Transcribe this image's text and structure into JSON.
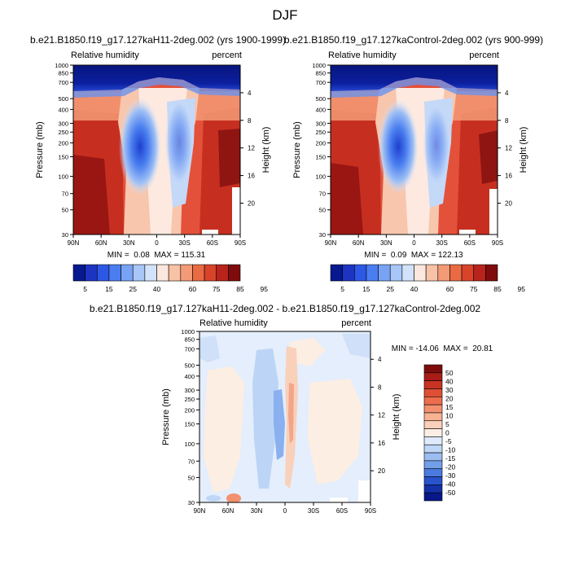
{
  "page": {
    "title": "DJF"
  },
  "chart_data": [
    {
      "type": "contour",
      "title": "b.e21.B1850.f19_g17.127kaH11-2deg.002 (yrs 1900-1999)",
      "left_string": "Relative humidity",
      "right_string": "percent",
      "ylabel": "Pressure (mb)",
      "ylabel_right": "Height (km)",
      "x_ticks": [
        "90N",
        "60N",
        "30N",
        "0",
        "30S",
        "60S",
        "90S"
      ],
      "y_ticks": [
        1000,
        850,
        700,
        500,
        400,
        300,
        250,
        200,
        150,
        100,
        70,
        50,
        30
      ],
      "y_scale": "log",
      "ylim": [
        1000,
        30
      ],
      "height_ticks": [
        4,
        8,
        12,
        16,
        20
      ],
      "stats": "MIN =  0.08  MAX = 115.31",
      "min": 0.08,
      "max": 115.31,
      "colorbar": {
        "orientation": "horizontal",
        "labels": [
          "5",
          "15",
          "25",
          "40",
          "60",
          "75",
          "85",
          "95"
        ],
        "colors": [
          "#08188f",
          "#1d34c2",
          "#2d58e6",
          "#4a7ef0",
          "#78a3f5",
          "#a8c6f7",
          "#d2e2fa",
          "#fbe7dd",
          "#f8c2a7",
          "#f39a76",
          "#ea6a43",
          "#d8432a",
          "#b8241b",
          "#7f0c0c"
        ]
      }
    },
    {
      "type": "contour",
      "title": "b.e21.B1850.f19_g17.127kaControl-2deg.002 (yrs 900-999)",
      "left_string": "Relative humidity",
      "right_string": "percent",
      "ylabel": "Pressure (mb)",
      "ylabel_right": "Height (km)",
      "x_ticks": [
        "90N",
        "60N",
        "30N",
        "0",
        "30S",
        "60S",
        "90S"
      ],
      "y_ticks": [
        1000,
        850,
        700,
        500,
        400,
        300,
        250,
        200,
        150,
        100,
        70,
        50,
        30
      ],
      "y_scale": "log",
      "ylim": [
        1000,
        30
      ],
      "height_ticks": [
        4,
        8,
        12,
        16,
        20
      ],
      "stats": "MIN =  0.09  MAX = 122.13",
      "min": 0.09,
      "max": 122.13,
      "colorbar": {
        "orientation": "horizontal",
        "labels": [
          "5",
          "15",
          "25",
          "40",
          "60",
          "75",
          "85",
          "95"
        ],
        "colors": [
          "#08188f",
          "#1d34c2",
          "#2d58e6",
          "#4a7ef0",
          "#78a3f5",
          "#a8c6f7",
          "#d2e2fa",
          "#fbe7dd",
          "#f8c2a7",
          "#f39a76",
          "#ea6a43",
          "#d8432a",
          "#b8241b",
          "#7f0c0c"
        ]
      }
    },
    {
      "type": "contour",
      "title": "b.e21.B1850.f19_g17.127kaH11-2deg.002 - b.e21.B1850.f19_g17.127kaControl-2deg.002",
      "left_string": "Relative humidity",
      "right_string": "percent",
      "ylabel": "Pressure (mb)",
      "ylabel_right": "Height (km)",
      "x_ticks": [
        "90N",
        "60N",
        "30N",
        "0",
        "30S",
        "60S",
        "90S"
      ],
      "y_ticks": [
        1000,
        850,
        700,
        500,
        400,
        300,
        250,
        200,
        150,
        100,
        70,
        50,
        30
      ],
      "y_scale": "log",
      "ylim": [
        1000,
        30
      ],
      "height_ticks": [
        4,
        8,
        12,
        16,
        20
      ],
      "stats": "MIN = -14.06  MAX =  20.81",
      "min": -14.06,
      "max": 20.81,
      "colorbar": {
        "orientation": "vertical",
        "labels": [
          "50",
          "40",
          "30",
          "20",
          "15",
          "10",
          "5",
          "0",
          "-5",
          "-10",
          "-15",
          "-20",
          "-30",
          "-40",
          "-50"
        ],
        "colors": [
          "#7f0c0c",
          "#a81d17",
          "#c93324",
          "#de4f35",
          "#ec6e4f",
          "#f3906f",
          "#f7b193",
          "#f9d0b9",
          "#fdeee3",
          "#dfeafb",
          "#bfd6f6",
          "#9cbdf1",
          "#739fe9",
          "#4b7be0",
          "#2853cd",
          "#1431a8",
          "#08188a"
        ]
      }
    }
  ]
}
